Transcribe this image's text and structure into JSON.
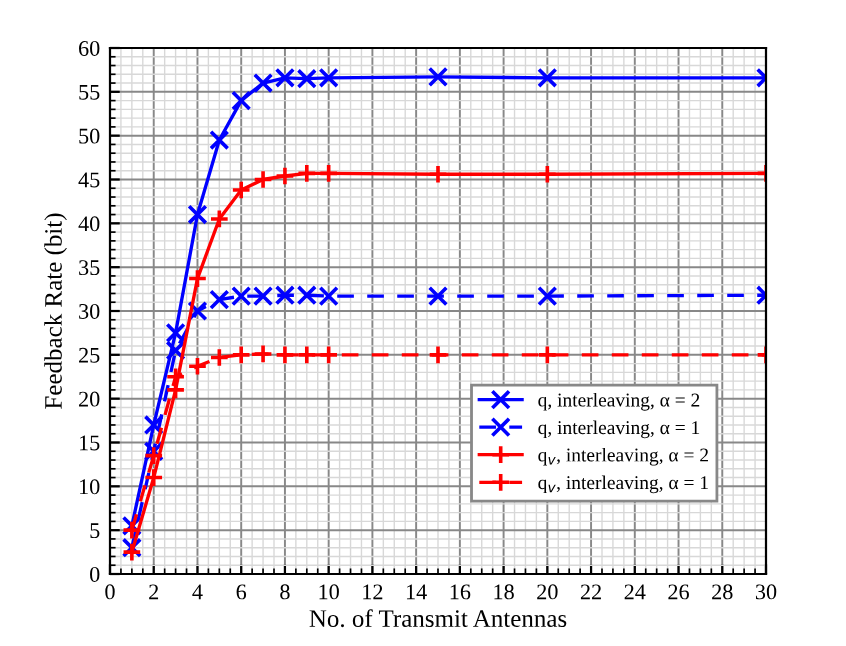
{
  "chart_data": {
    "type": "line",
    "xlabel": "No. of Transmit Antennas",
    "ylabel": "Feedback Rate (bit)",
    "x": [
      1,
      2,
      3,
      4,
      5,
      6,
      7,
      8,
      9,
      10,
      15,
      20,
      30
    ],
    "series": [
      {
        "name": "q, interleaving, α = 2",
        "color": "#0000ff",
        "marker": "cross",
        "line_style": "solid",
        "values": [
          5.5,
          17,
          27.5,
          41,
          49.5,
          54,
          56,
          56.6,
          56.5,
          56.6,
          56.7,
          56.6,
          56.6
        ]
      },
      {
        "name": "q, interleaving, α = 1",
        "color": "#0000ff",
        "marker": "cross",
        "line_style": "dashed",
        "values": [
          3,
          14,
          25.5,
          30,
          31.3,
          31.7,
          31.7,
          31.8,
          31.8,
          31.7,
          31.7,
          31.7,
          31.8
        ]
      },
      {
        "name": "q$_{v}$, interleaving, α = 2",
        "color": "#ff0000",
        "marker": "plus",
        "line_style": "solid",
        "values": [
          2.5,
          11,
          21,
          33.7,
          40.5,
          43.8,
          45,
          45.4,
          45.7,
          45.7,
          45.6,
          45.6,
          45.7
        ]
      },
      {
        "name": "q$_{v}$, interleaving, α = 1",
        "color": "#ff0000",
        "marker": "plus",
        "line_style": "dashed",
        "values": [
          5,
          13.5,
          22.5,
          23.7,
          24.7,
          25,
          25.1,
          25,
          25,
          25,
          25,
          25,
          25
        ]
      }
    ],
    "xlim": [
      0,
      30
    ],
    "xticks": [
      0,
      2,
      4,
      6,
      8,
      10,
      12,
      14,
      16,
      18,
      20,
      22,
      24,
      26,
      28,
      30
    ],
    "ylim": [
      0,
      60
    ],
    "yticks": [
      0,
      5,
      10,
      15,
      20,
      25,
      30,
      35,
      40,
      45,
      50,
      55,
      60
    ],
    "grid": true,
    "legend": "bottom right"
  }
}
